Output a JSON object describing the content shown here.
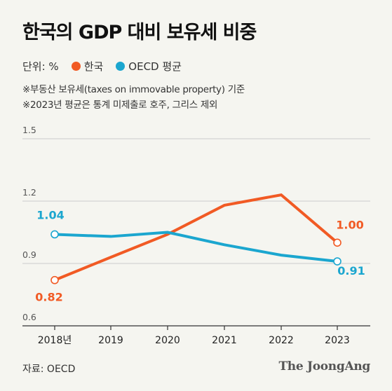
{
  "title": "한국의 GDP 대비 보유세 비중",
  "unit_label": "단위: %",
  "notes": [
    "※부동산 보유세(taxes on immovable property) 기준",
    "※2023년 평균은 통계 미제출로 호주, 그리스 제외"
  ],
  "source": "자료: OECD",
  "logo": "The JoongAng",
  "colors": {
    "korea": "#f15a24",
    "oecd": "#1ba6cf",
    "axis": "#333333",
    "grid": "#cccccc",
    "background": "#f5f5f0"
  },
  "chart_data": {
    "type": "line",
    "x": [
      "2018년",
      "2019",
      "2020",
      "2021",
      "2022",
      "2023"
    ],
    "ylim": [
      0.6,
      1.5
    ],
    "yticks": [
      "0.6",
      "0.9",
      "1.2",
      "1.5"
    ],
    "grid": true,
    "legend": "top-left",
    "series": [
      {
        "name": "한국",
        "values": [
          0.82,
          0.93,
          1.04,
          1.18,
          1.23,
          1.0
        ],
        "color": "#f15a24",
        "labels": [
          {
            "index": 0,
            "text": "0.82"
          },
          {
            "index": 5,
            "text": "1.00"
          }
        ]
      },
      {
        "name": "OECD 평균",
        "values": [
          1.04,
          1.03,
          1.05,
          0.99,
          0.94,
          0.91
        ],
        "color": "#1ba6cf",
        "labels": [
          {
            "index": 0,
            "text": "1.04"
          },
          {
            "index": 5,
            "text": "0.91"
          }
        ]
      }
    ]
  }
}
